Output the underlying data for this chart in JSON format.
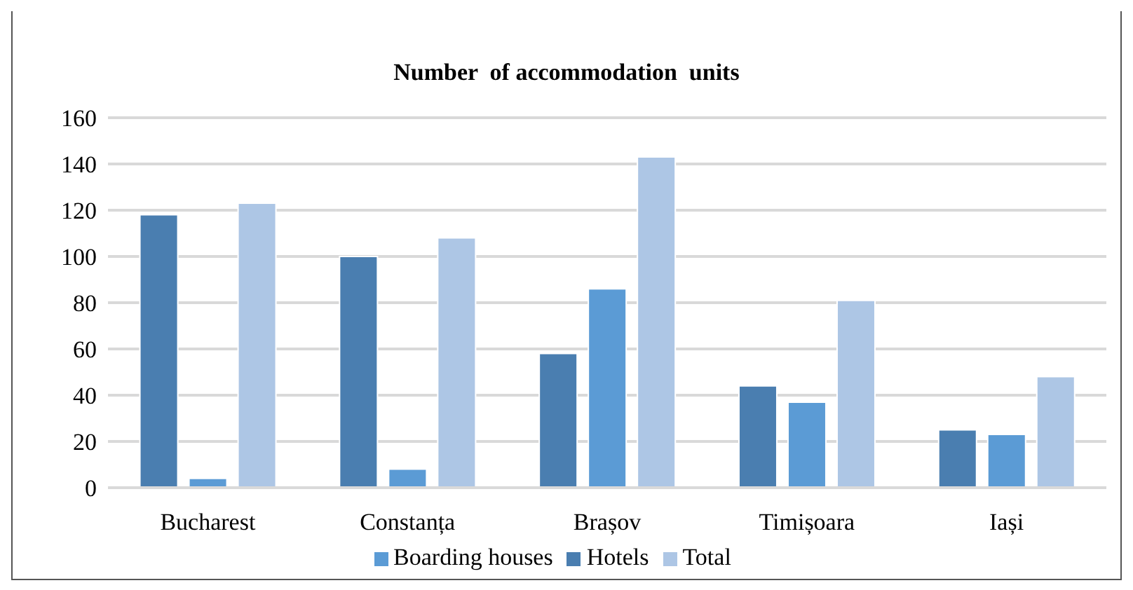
{
  "chart_data": {
    "type": "bar",
    "title": "Number  of accommodation  units",
    "categories": [
      "Bucharest",
      "Constanța",
      "Brașov",
      "Timișoara",
      "Iași"
    ],
    "series": [
      {
        "name": "Hotels",
        "color": "#4a7eb0",
        "values": [
          118,
          100,
          58,
          44,
          25
        ]
      },
      {
        "name": "Boarding houses",
        "color": "#5b9bd5",
        "values": [
          4,
          8,
          86,
          37,
          23
        ]
      },
      {
        "name": "Total",
        "color": "#adc6e5",
        "values": [
          123,
          108,
          143,
          81,
          48
        ]
      }
    ],
    "ylim": [
      0,
      160
    ],
    "yticks": [
      0,
      20,
      40,
      60,
      80,
      100,
      120,
      140,
      160
    ],
    "grid": "y",
    "legend": "bottom"
  }
}
